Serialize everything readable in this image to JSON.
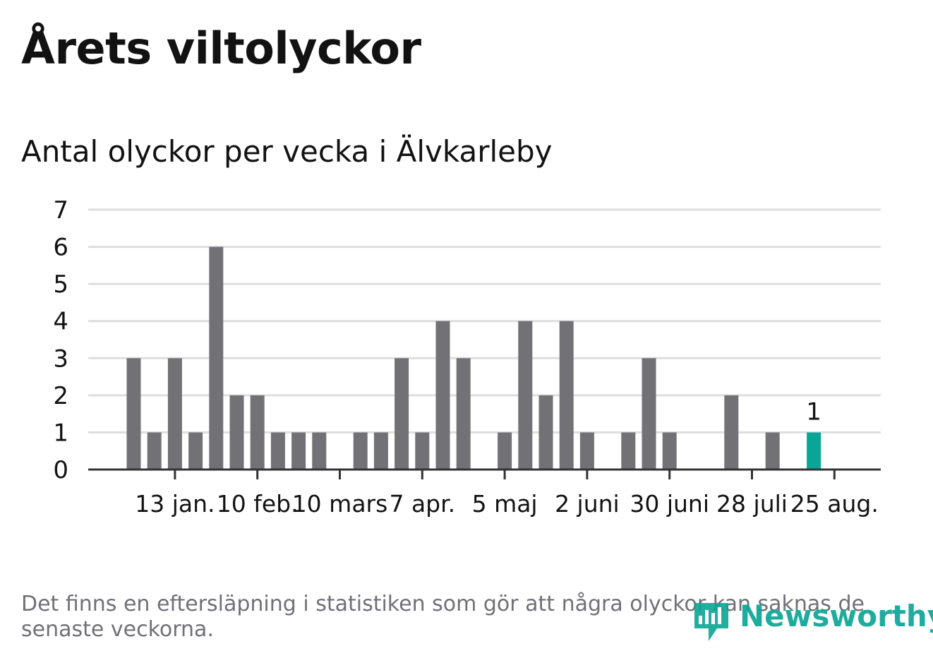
{
  "title": "Årets viltolyckor",
  "subtitle": "Antal olyckor per vecka i Älvkarleby",
  "footnote": "Det finns en eftersläpning i statistiken som gör att några olyckor kan saknas de senaste veckorna.",
  "logo": {
    "text": "Newsworthy",
    "icon": "newsworthy-chart-icon"
  },
  "colors": {
    "bar": "#727176",
    "highlight": "#0aa595",
    "grid": "#dedede",
    "axis": "#333333",
    "text": "#121212"
  },
  "chart_data": {
    "type": "bar",
    "x_type": "week-start-date",
    "x": [
      "2024-01-01",
      "2024-01-08",
      "2024-01-15",
      "2024-01-22",
      "2024-01-29",
      "2024-02-05",
      "2024-02-12",
      "2024-02-19",
      "2024-02-26",
      "2024-03-04",
      "2024-03-11",
      "2024-03-18",
      "2024-03-25",
      "2024-04-01",
      "2024-04-08",
      "2024-04-15",
      "2024-04-22",
      "2024-04-29",
      "2024-05-06",
      "2024-05-13",
      "2024-05-20",
      "2024-05-27",
      "2024-06-03",
      "2024-06-10",
      "2024-06-17",
      "2024-06-24",
      "2024-07-01",
      "2024-07-08",
      "2024-07-15",
      "2024-07-22",
      "2024-07-29",
      "2024-08-05",
      "2024-08-12",
      "2024-08-19"
    ],
    "values": [
      3,
      1,
      3,
      1,
      6,
      2,
      2,
      1,
      1,
      1,
      0,
      1,
      1,
      3,
      1,
      4,
      3,
      0,
      1,
      4,
      2,
      4,
      1,
      0,
      1,
      3,
      1,
      0,
      0,
      2,
      0,
      1,
      0,
      1
    ],
    "highlight_last": true,
    "data_labels": [
      {
        "x": "2024-08-19",
        "label": "1"
      }
    ],
    "yticks": [
      "0",
      "1",
      "2",
      "3",
      "4",
      "5",
      "6",
      "7"
    ],
    "ylim": [
      0,
      7
    ],
    "xticks": [
      {
        "x": "2024-01-15",
        "label": "13 jan."
      },
      {
        "x": "2024-02-12",
        "label": "10 feb."
      },
      {
        "x": "2024-03-11",
        "label": "10 mars"
      },
      {
        "x": "2024-04-08",
        "label": "7 apr."
      },
      {
        "x": "2024-05-06",
        "label": "5 maj"
      },
      {
        "x": "2024-06-03",
        "label": "2 juni"
      },
      {
        "x": "2024-07-01",
        "label": "30 juni"
      },
      {
        "x": "2024-07-29",
        "label": "28 juli"
      },
      {
        "x": "2024-08-26",
        "label": "25 aug."
      }
    ],
    "grid": true,
    "xlabel": "",
    "ylabel": ""
  }
}
